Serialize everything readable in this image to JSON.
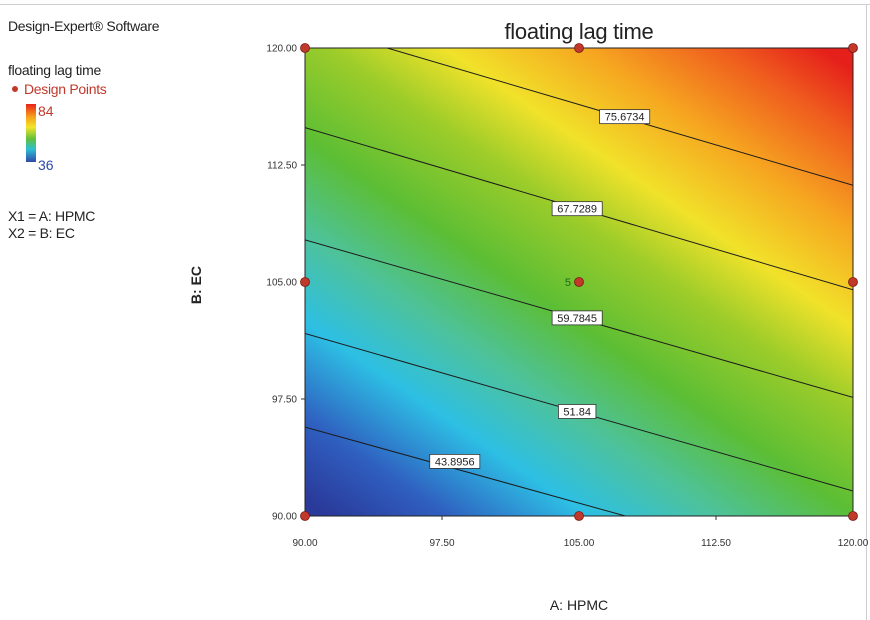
{
  "software": "Design-Expert® Software",
  "legend": {
    "response": "floating lag time",
    "design_points": "Design Points",
    "high": "84",
    "low": "36",
    "x1": "X1 = A: HPMC",
    "x2": "X2 = B: EC"
  },
  "colors": {
    "design_point": "#c0392b",
    "high": "#e8221b",
    "low": "#2f49a8"
  },
  "chart_data": {
    "type": "contour",
    "title": "floating lag time",
    "xlabel": "A: HPMC",
    "ylabel": "B: EC",
    "xlim": [
      90,
      120
    ],
    "ylim": [
      90,
      120
    ],
    "x_ticks": [
      "90.00",
      "97.50",
      "105.00",
      "112.50",
      "120.00"
    ],
    "y_ticks": [
      "90.00",
      "97.50",
      "105.00",
      "112.50",
      "120.00"
    ],
    "color_range": [
      36,
      84
    ],
    "contours": [
      {
        "label": "43.8956",
        "points": [
          [
            90,
            95.7
          ],
          [
            110,
            89.2
          ]
        ],
        "label_at": [
          98.2,
          93.5
        ]
      },
      {
        "label": "51.84",
        "points": [
          [
            90,
            101.7
          ],
          [
            120,
            91.6
          ]
        ],
        "label_at": [
          104.9,
          96.7
        ]
      },
      {
        "label": "59.7845",
        "points": [
          [
            90,
            107.7
          ],
          [
            120,
            97.6
          ]
        ],
        "label_at": [
          104.9,
          102.7
        ]
      },
      {
        "label": "67.7289",
        "points": [
          [
            90,
            114.9
          ],
          [
            120,
            104.5
          ]
        ],
        "label_at": [
          104.9,
          109.7
        ]
      },
      {
        "label": "75.6734",
        "points": [
          [
            94.5,
            120
          ],
          [
            120,
            111.2
          ]
        ],
        "label_at": [
          107.5,
          115.6
        ]
      }
    ],
    "design_points": [
      {
        "x": 90,
        "y": 90
      },
      {
        "x": 105,
        "y": 90
      },
      {
        "x": 120,
        "y": 90
      },
      {
        "x": 90,
        "y": 105
      },
      {
        "x": 105,
        "y": 105,
        "label": "5"
      },
      {
        "x": 120,
        "y": 105
      },
      {
        "x": 90,
        "y": 120
      },
      {
        "x": 105,
        "y": 120
      },
      {
        "x": 120,
        "y": 120
      }
    ]
  }
}
